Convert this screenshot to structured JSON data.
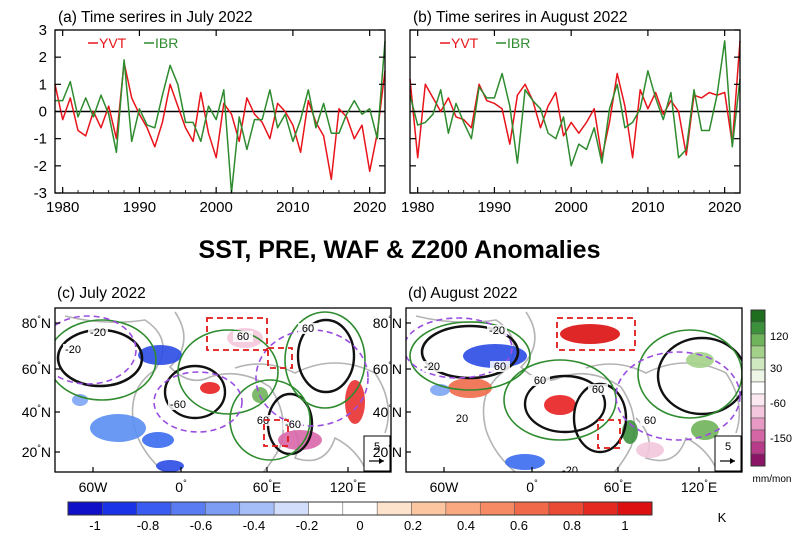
{
  "main_title": "SST, PRE, WAF & Z200 Anomalies",
  "colors": {
    "yvt": "#e8141b",
    "ibr": "#2e8b2e",
    "zero_line": "#000000"
  },
  "chart_data": [
    {
      "type": "line",
      "panel": "a",
      "title": "(a) Time serires in July 2022",
      "xlim": [
        1979,
        2022
      ],
      "ylim": [
        -3,
        3
      ],
      "xticks": [
        1980,
        1990,
        2000,
        2010,
        2020
      ],
      "yticks": [
        -3,
        -2,
        -1,
        0,
        1,
        2,
        3
      ],
      "x": [
        1979,
        1980,
        1981,
        1982,
        1983,
        1984,
        1985,
        1986,
        1987,
        1988,
        1989,
        1990,
        1991,
        1992,
        1993,
        1994,
        1995,
        1996,
        1997,
        1998,
        1999,
        2000,
        2001,
        2002,
        2003,
        2004,
        2005,
        2006,
        2007,
        2008,
        2009,
        2010,
        2011,
        2012,
        2013,
        2014,
        2015,
        2016,
        2017,
        2018,
        2019,
        2020,
        2021,
        2022
      ],
      "series": [
        {
          "name": "YVT",
          "values": [
            1.0,
            -0.3,
            0.5,
            -0.7,
            -0.9,
            0.0,
            -0.6,
            0.2,
            -1.0,
            1.8,
            0.5,
            -0.1,
            -0.6,
            -1.3,
            -0.4,
            1.0,
            0.2,
            -0.6,
            -1.1,
            0.7,
            -0.8,
            -1.7,
            0.3,
            -0.1,
            -1.1,
            0.5,
            -0.1,
            -0.4,
            -1.0,
            0.3,
            0.0,
            -0.5,
            -1.5,
            0.4,
            -0.4,
            -0.9,
            -2.5,
            0.1,
            -0.2,
            -1.0,
            -0.5,
            -2.2,
            -0.8,
            1.5
          ]
        },
        {
          "name": "IBR",
          "values": [
            0.4,
            0.4,
            1.1,
            -0.2,
            0.5,
            -0.2,
            0.6,
            -0.1,
            -1.5,
            1.9,
            -1.1,
            0.1,
            -0.5,
            -0.6,
            0.6,
            1.7,
            1.0,
            -0.4,
            -0.4,
            -1.1,
            0.2,
            -0.3,
            0.8,
            -3.0,
            -0.2,
            -1.4,
            -0.3,
            -0.3,
            0.8,
            -0.6,
            -0.1,
            -1.1,
            -0.3,
            0.8,
            -0.6,
            0.3,
            -0.8,
            -0.8,
            -0.1,
            0.4,
            -0.1,
            0.1,
            -1.0,
            2.6
          ]
        }
      ]
    },
    {
      "type": "line",
      "panel": "b",
      "title": "(b) Time serires in August 2022",
      "xlim": [
        1979,
        2022
      ],
      "ylim": [
        -3,
        3
      ],
      "xticks": [
        1980,
        1990,
        2000,
        2010,
        2020
      ],
      "yticks": [
        -3,
        -2,
        -1,
        0,
        1,
        2,
        3
      ],
      "x": [
        1979,
        1980,
        1981,
        1982,
        1983,
        1984,
        1985,
        1986,
        1987,
        1988,
        1989,
        1990,
        1991,
        1992,
        1993,
        1994,
        1995,
        1996,
        1997,
        1998,
        1999,
        2000,
        2001,
        2002,
        2003,
        2004,
        2005,
        2006,
        2007,
        2008,
        2009,
        2010,
        2011,
        2012,
        2013,
        2014,
        2015,
        2016,
        2017,
        2018,
        2019,
        2020,
        2021,
        2022
      ],
      "series": [
        {
          "name": "YVT",
          "values": [
            1.2,
            -1.7,
            1.0,
            0.5,
            0.0,
            0.5,
            -0.2,
            -0.3,
            -0.6,
            1.0,
            0.4,
            0.3,
            0.1,
            -1.2,
            0.6,
            1.0,
            0.4,
            -0.6,
            0.2,
            0.7,
            -0.9,
            -0.4,
            -0.8,
            -0.4,
            0.1,
            -1.7,
            -0.4,
            1.4,
            0.2,
            -1.7,
            0.8,
            0.1,
            0.7,
            -0.1,
            0.4,
            0.0,
            -1.6,
            0.6,
            0.5,
            0.7,
            0.6,
            0.7,
            -1.2,
            2.6
          ]
        },
        {
          "name": "IBR",
          "values": [
            0.6,
            -0.5,
            -0.4,
            -0.1,
            0.8,
            -0.8,
            0.3,
            -0.4,
            -1.0,
            0.9,
            0.5,
            0.5,
            1.4,
            0.2,
            -1.9,
            0.8,
            0.4,
            0.1,
            -0.8,
            -1.0,
            -0.2,
            -2.0,
            -1.2,
            -1.4,
            -0.6,
            -1.9,
            0.1,
            1.0,
            -0.6,
            -0.4,
            0.1,
            1.5,
            0.5,
            -0.3,
            0.7,
            -1.7,
            -1.4,
            0.8,
            -0.7,
            -0.7,
            0.6,
            2.6,
            -1.3,
            1.2
          ]
        }
      ]
    },
    {
      "type": "map",
      "panel": "c",
      "title": "(c) July 2022",
      "lat_ticks": [
        "20°N",
        "40°N",
        "60°N",
        "80°N"
      ],
      "lon_ticks": [
        "60W",
        "0°",
        "60°E",
        "120°E"
      ],
      "contour_labels": [
        "-20",
        "-20",
        "60",
        "60",
        "-60",
        "-60",
        "60"
      ],
      "vector_scale": "5"
    },
    {
      "type": "map",
      "panel": "d",
      "title": "(d) August 2022",
      "lat_ticks": [
        "20°N",
        "40°N",
        "60°N",
        "80°N"
      ],
      "lon_ticks": [
        "60W",
        "0°",
        "60°E",
        "120°E"
      ],
      "contour_labels": [
        "-20",
        "-20",
        "20",
        "60",
        "60",
        "60",
        "60",
        "-20"
      ],
      "vector_scale": "5"
    },
    {
      "type": "colorbar",
      "name": "sst",
      "orientation": "horizontal",
      "tick_labels": [
        "-1",
        "-0.8",
        "-0.6",
        "-0.4",
        "-0.2",
        "0",
        "0.2",
        "0.4",
        "0.6",
        "0.8",
        "1"
      ],
      "unit": "K",
      "colors": [
        "#1010c8",
        "#1a33e6",
        "#3a5cf0",
        "#5a7cf2",
        "#7d9cf4",
        "#a6bef8",
        "#d2dcfb",
        "#ffffff",
        "#ffffff",
        "#fde2cc",
        "#fbc6a0",
        "#f9a880",
        "#f58a64",
        "#f06a4a",
        "#ea4a34",
        "#e42a20",
        "#dc1010"
      ]
    },
    {
      "type": "colorbar",
      "name": "precipitation",
      "orientation": "vertical",
      "tick_labels": [
        "120",
        "30",
        "-60",
        "-150"
      ],
      "unit": "mm/mon",
      "colors": [
        "#1f6e1f",
        "#3d913d",
        "#6fb35a",
        "#a4d18a",
        "#cfe8bf",
        "#eef6e8",
        "#ffffff",
        "#fbe8f1",
        "#f3c6dd",
        "#e79ac3",
        "#d466a6",
        "#b83b8a",
        "#8c1466"
      ]
    }
  ]
}
